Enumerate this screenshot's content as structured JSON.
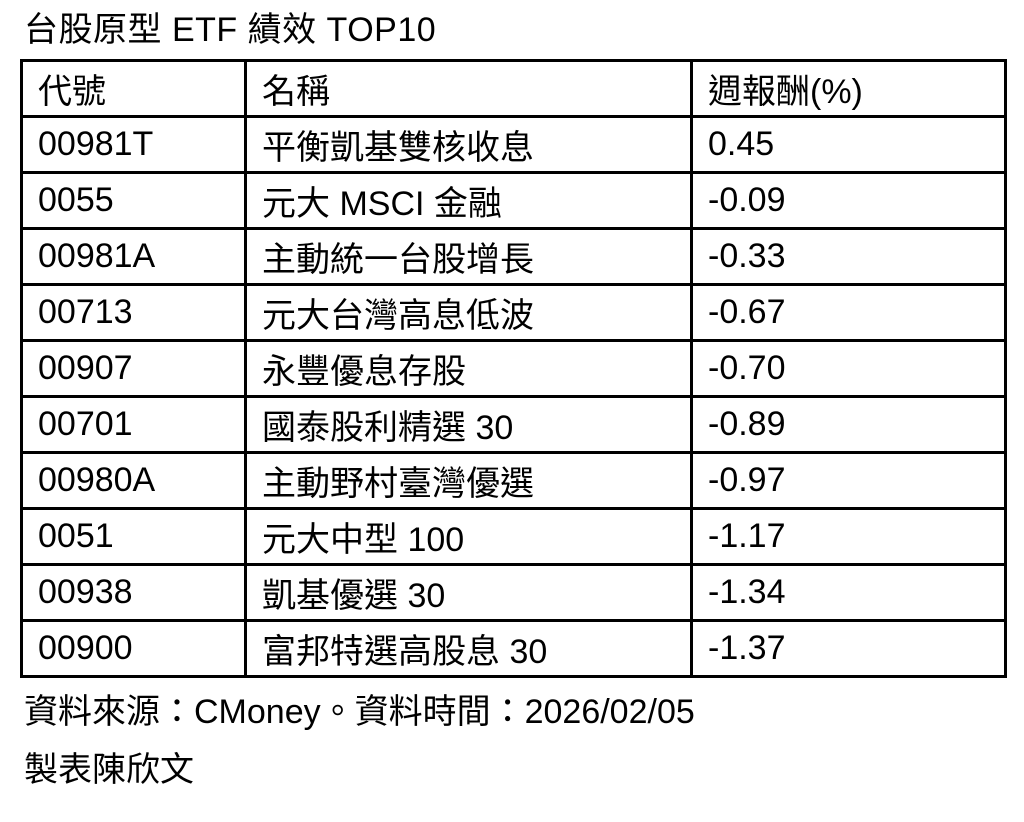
{
  "title": "台股原型 ETF 績效 TOP10",
  "table": {
    "headers": [
      "代號",
      "名稱",
      "週報酬(%)"
    ],
    "rows": [
      [
        "00981T",
        "平衡凱基雙核收息",
        "0.45"
      ],
      [
        "0055",
        "元大 MSCI 金融",
        "-0.09"
      ],
      [
        "00981A",
        "主動統一台股增長",
        "-0.33"
      ],
      [
        "00713",
        "元大台灣高息低波",
        "-0.67"
      ],
      [
        "00907",
        "永豐優息存股",
        "-0.70"
      ],
      [
        "00701",
        "國泰股利精選 30",
        "-0.89"
      ],
      [
        "00980A",
        "主動野村臺灣優選",
        "-0.97"
      ],
      [
        "0051",
        "元大中型 100",
        "-1.17"
      ],
      [
        "00938",
        "凱基優選 30",
        "-1.34"
      ],
      [
        "00900",
        "富邦特選高股息 30",
        "-1.37"
      ]
    ]
  },
  "footer": {
    "source_line": "資料來源：CMoney。資料時間：2026/02/05",
    "credit_line": "製表陳欣文"
  },
  "colors": {
    "text": "#000000",
    "border": "#000000",
    "background": "#ffffff"
  },
  "chart_data": {
    "type": "table",
    "title": "台股原型 ETF 績效 TOP10",
    "columns": [
      "代號",
      "名稱",
      "週報酬(%)"
    ],
    "rows": [
      {
        "code": "00981T",
        "name": "平衡凱基雙核收息",
        "weekly_return_pct": 0.45
      },
      {
        "code": "0055",
        "name": "元大 MSCI 金融",
        "weekly_return_pct": -0.09
      },
      {
        "code": "00981A",
        "name": "主動統一台股增長",
        "weekly_return_pct": -0.33
      },
      {
        "code": "00713",
        "name": "元大台灣高息低波",
        "weekly_return_pct": -0.67
      },
      {
        "code": "00907",
        "name": "永豐優息存股",
        "weekly_return_pct": -0.7
      },
      {
        "code": "00701",
        "name": "國泰股利精選 30",
        "weekly_return_pct": -0.89
      },
      {
        "code": "00980A",
        "name": "主動野村臺灣優選",
        "weekly_return_pct": -0.97
      },
      {
        "code": "0051",
        "name": "元大中型 100",
        "weekly_return_pct": -1.17
      },
      {
        "code": "00938",
        "name": "凱基優選 30",
        "weekly_return_pct": -1.34
      },
      {
        "code": "00900",
        "name": "富邦特選高股息 30",
        "weekly_return_pct": -1.37
      }
    ],
    "source": "CMoney",
    "data_date": "2026/02/05",
    "table_author": "陳欣文"
  }
}
